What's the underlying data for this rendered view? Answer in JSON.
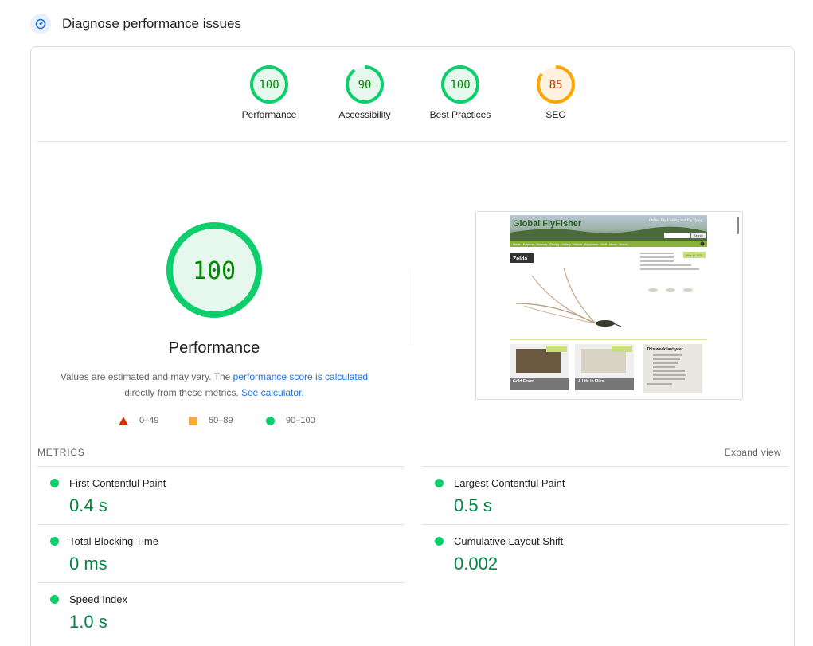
{
  "header": {
    "title": "Diagnose performance issues",
    "icon": "performance-gauge-icon"
  },
  "gauges": [
    {
      "label": "Performance",
      "score": "100",
      "fraction": 1.0,
      "color": "#0cce6b",
      "text_color": "#008800",
      "fill": "#e6f8ee"
    },
    {
      "label": "Accessibility",
      "score": "90",
      "fraction": 0.9,
      "color": "#0cce6b",
      "text_color": "#008800",
      "fill": "#e6f8ee"
    },
    {
      "label": "Best Practices",
      "score": "100",
      "fraction": 1.0,
      "color": "#0cce6b",
      "text_color": "#008800",
      "fill": "#e6f8ee"
    },
    {
      "label": "SEO",
      "score": "85",
      "fraction": 0.85,
      "color": "#ffa400",
      "text_color": "#c33300",
      "fill": "#fff3e0"
    }
  ],
  "performance": {
    "score": "100",
    "title": "Performance",
    "note_before": "Values are estimated and may vary. The ",
    "note_link1": "performance score is calculated",
    "note_middle": "directly from these metrics.",
    "note_link2": "See calculator."
  },
  "legend": [
    {
      "shape": "triangle",
      "range": "0–49",
      "color": "#cc3300"
    },
    {
      "shape": "square",
      "range": "50–89",
      "color": "#ffaa33"
    },
    {
      "shape": "circle",
      "range": "90–100",
      "color": "#0cce6b"
    }
  ],
  "screenshot": {
    "site_title": "Global FlyFisher",
    "tagline": "Online Fly Fishing and Fly Tying",
    "search_label": "Search",
    "nav": [
      "Home",
      "Patterns",
      "Seasons",
      "Fishing",
      "Gallery",
      "Videos",
      "Equipment",
      "Stuff",
      "About",
      "Search"
    ],
    "feature_label": "Zelda",
    "date_badge": "Nov 15, 2023",
    "card1": "Gold Fever",
    "card2": "A Life in Flies",
    "week_title": "This week last year"
  },
  "metrics_section": {
    "title": "METRICS",
    "expand_label": "Expand view"
  },
  "metrics": [
    {
      "name": "First Contentful Paint",
      "value": "0.4 s"
    },
    {
      "name": "Largest Contentful Paint",
      "value": "0.5 s"
    },
    {
      "name": "Total Blocking Time",
      "value": "0 ms"
    },
    {
      "name": "Cumulative Layout Shift",
      "value": "0.002"
    },
    {
      "name": "Speed Index",
      "value": "1.0 s"
    }
  ]
}
